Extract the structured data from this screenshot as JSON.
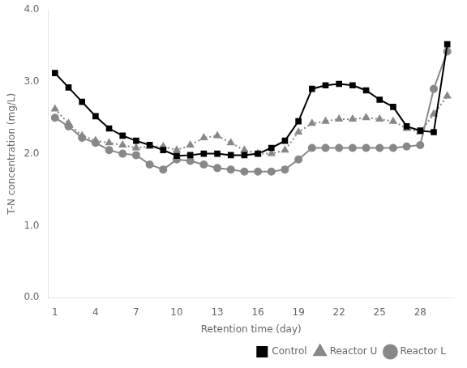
{
  "chart_data": {
    "type": "line",
    "x_label": "Retention time (day)",
    "y_label": "T-N concentration (mg/L)",
    "x": [
      1,
      2,
      3,
      4,
      5,
      6,
      7,
      8,
      9,
      10,
      11,
      12,
      13,
      14,
      15,
      16,
      17,
      18,
      19,
      20,
      21,
      22,
      23,
      24,
      25,
      26,
      27,
      28,
      29,
      30
    ],
    "series": [
      {
        "name": "Control",
        "color": "#000000",
        "marker": "square",
        "line_style": "solid",
        "values": [
          3.12,
          2.92,
          2.72,
          2.52,
          2.35,
          2.25,
          2.18,
          2.12,
          2.05,
          1.97,
          1.98,
          2.0,
          2.0,
          1.98,
          1.98,
          2.0,
          2.08,
          2.18,
          2.45,
          2.9,
          2.95,
          2.97,
          2.95,
          2.88,
          2.75,
          2.65,
          2.38,
          2.32,
          2.3,
          3.52
        ]
      },
      {
        "name": "Reactor U",
        "color": "#888888",
        "marker": "triangle",
        "line_style": "dotted",
        "values": [
          2.62,
          2.42,
          2.25,
          2.18,
          2.15,
          2.12,
          2.08,
          2.1,
          2.1,
          2.05,
          2.12,
          2.22,
          2.25,
          2.15,
          2.05,
          2.0,
          2.0,
          2.05,
          2.3,
          2.42,
          2.45,
          2.48,
          2.48,
          2.5,
          2.48,
          2.45,
          2.35,
          2.3,
          2.55,
          2.8
        ]
      },
      {
        "name": "Reactor L",
        "color": "#888888",
        "marker": "circle",
        "line_style": "solid",
        "values": [
          2.5,
          2.38,
          2.22,
          2.15,
          2.05,
          2.0,
          1.98,
          1.85,
          1.78,
          1.92,
          1.9,
          1.85,
          1.8,
          1.78,
          1.75,
          1.75,
          1.75,
          1.78,
          1.92,
          2.08,
          2.08,
          2.08,
          2.08,
          2.08,
          2.08,
          2.08,
          2.1,
          2.12,
          2.9,
          3.42
        ]
      }
    ],
    "xlim": [
      0.5,
      30.5
    ],
    "xticks": [
      1,
      4,
      7,
      10,
      13,
      16,
      19,
      22,
      25,
      28
    ],
    "ylim": [
      0.0,
      4.0
    ],
    "yticks": [
      {
        "value": 0,
        "label": "0.0"
      },
      {
        "value": 1,
        "label": "1.0"
      },
      {
        "value": 2,
        "label": "2.0"
      },
      {
        "value": 3,
        "label": "3.0"
      },
      {
        "value": 4,
        "label": "4.0"
      }
    ],
    "grid": false,
    "legend": "lower right"
  }
}
